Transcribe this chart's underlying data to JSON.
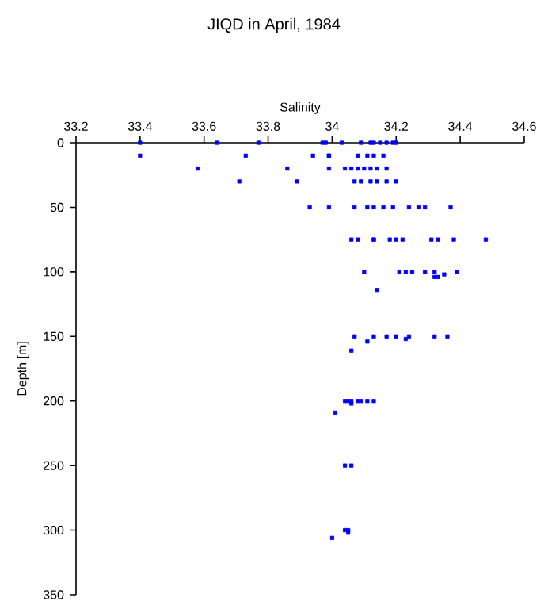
{
  "chart_data": {
    "type": "scatter",
    "title": "JIQD in April, 1984",
    "xlabel": "Salinity",
    "ylabel": "Depth [m]",
    "xlim": [
      33.2,
      34.6
    ],
    "xticks": [
      33.2,
      33.4,
      33.6,
      33.8,
      34,
      34.2,
      34.4,
      34.6
    ],
    "ylim": [
      350,
      0
    ],
    "yticks": [
      0,
      50,
      100,
      150,
      200,
      250,
      300,
      350
    ],
    "marker": "square",
    "grid": false,
    "series": [
      {
        "color": "#0000ff",
        "x": [
          33.4,
          33.64,
          33.77,
          33.97,
          33.98,
          34.03,
          34.09,
          34.12,
          34.13,
          34.15,
          34.17,
          34.19,
          34.2,
          33.4,
          33.73,
          33.94,
          33.99,
          33.99,
          34.08,
          34.11,
          34.13,
          34.16,
          33.58,
          33.86,
          33.99,
          34.04,
          34.06,
          34.08,
          34.1,
          34.12,
          34.14,
          34.17,
          33.71,
          33.89,
          34.07,
          34.09,
          34.12,
          34.14,
          34.17,
          34.2,
          33.93,
          33.99,
          34.07,
          34.11,
          34.13,
          34.16,
          34.19,
          34.24,
          34.27,
          34.29,
          34.37,
          34.06,
          34.08,
          34.13,
          34.13,
          34.18,
          34.2,
          34.22,
          34.31,
          34.33,
          34.38,
          34.48,
          34.1,
          34.21,
          34.23,
          34.25,
          34.29,
          34.32,
          34.39,
          34.32,
          34.33,
          34.35,
          34.14,
          34.07,
          34.13,
          34.17,
          34.2,
          34.24,
          34.32,
          34.36,
          34.11,
          34.23,
          34.06,
          34.04,
          34.05,
          34.06,
          34.08,
          34.09,
          34.11,
          34.13,
          34.06,
          34.01,
          34.04,
          34.06,
          34.04,
          34.05,
          34.05,
          34.0
        ],
        "values": [
          0,
          0,
          0,
          0,
          0,
          0,
          0,
          0,
          0,
          0,
          0,
          0,
          0,
          10,
          10,
          10,
          10,
          10,
          10,
          10,
          10,
          10,
          20,
          20,
          20,
          20,
          20,
          20,
          20,
          20,
          20,
          20,
          30,
          30,
          30,
          30,
          30,
          30,
          30,
          30,
          50,
          50,
          50,
          50,
          50,
          50,
          50,
          50,
          50,
          50,
          50,
          75,
          75,
          75,
          75,
          75,
          75,
          75,
          75,
          75,
          75,
          75,
          100,
          100,
          100,
          100,
          100,
          100,
          100,
          104,
          104,
          102,
          114,
          150,
          150,
          150,
          150,
          150,
          150,
          150,
          154,
          152,
          161,
          200,
          200,
          200,
          200,
          200,
          200,
          200,
          202,
          209,
          250,
          250,
          300,
          300,
          302,
          306
        ]
      }
    ]
  }
}
